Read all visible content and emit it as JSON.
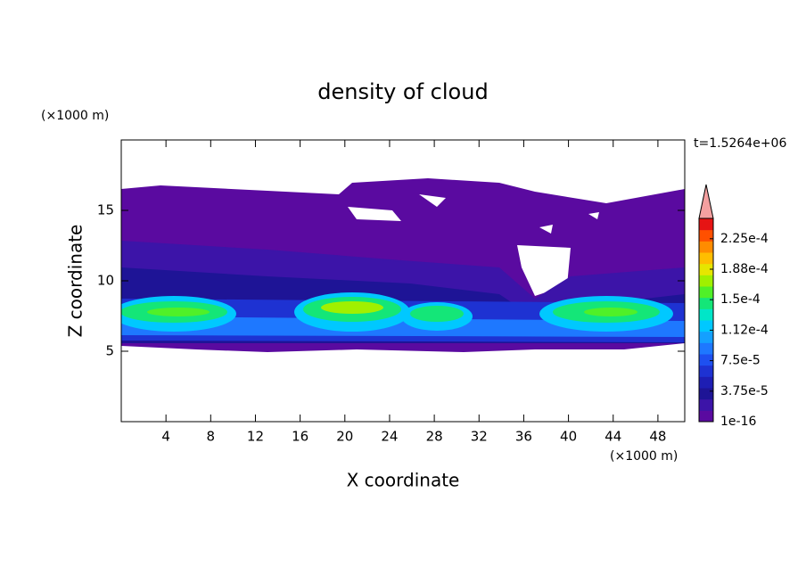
{
  "chart_data": {
    "type": "contour",
    "title": "density of cloud",
    "x_label": "X coordinate",
    "y_label": "Z coordinate",
    "x_unit": "(×1000 m)",
    "y_unit": "(×1000 m)",
    "time_label": "t=1.5264e+06",
    "xlim": [
      0,
      50.4
    ],
    "ylim": [
      0,
      20
    ],
    "xticks": [
      4,
      8,
      12,
      16,
      20,
      24,
      28,
      32,
      36,
      40,
      44,
      48
    ],
    "yticks": [
      5,
      10,
      15
    ],
    "colorbar": {
      "lim": [
        0,
        0.00025
      ],
      "ticks": [
        {
          "value": 1e-16,
          "label": "1e-16"
        },
        {
          "value": 3.75e-05,
          "label": "3.75e-5"
        },
        {
          "value": 7.5e-05,
          "label": "7.5e-5"
        },
        {
          "value": 0.0001125,
          "label": "1.12e-4"
        },
        {
          "value": 0.00015,
          "label": "1.5e-4"
        },
        {
          "value": 0.0001875,
          "label": "1.88e-4"
        },
        {
          "value": 0.000225,
          "label": "2.25e-4"
        }
      ],
      "colors": [
        "#5a0aa0",
        "#3c14a8",
        "#1e1496",
        "#1e1eb4",
        "#1e32d2",
        "#1e50f0",
        "#1e78ff",
        "#14a0ff",
        "#00c8ff",
        "#00e6c8",
        "#14e678",
        "#50f028",
        "#a0f000",
        "#e6e600",
        "#ffbe00",
        "#ff8c00",
        "#ff5000",
        "#e61414"
      ],
      "extend_color": "#f4a0a0"
    }
  }
}
